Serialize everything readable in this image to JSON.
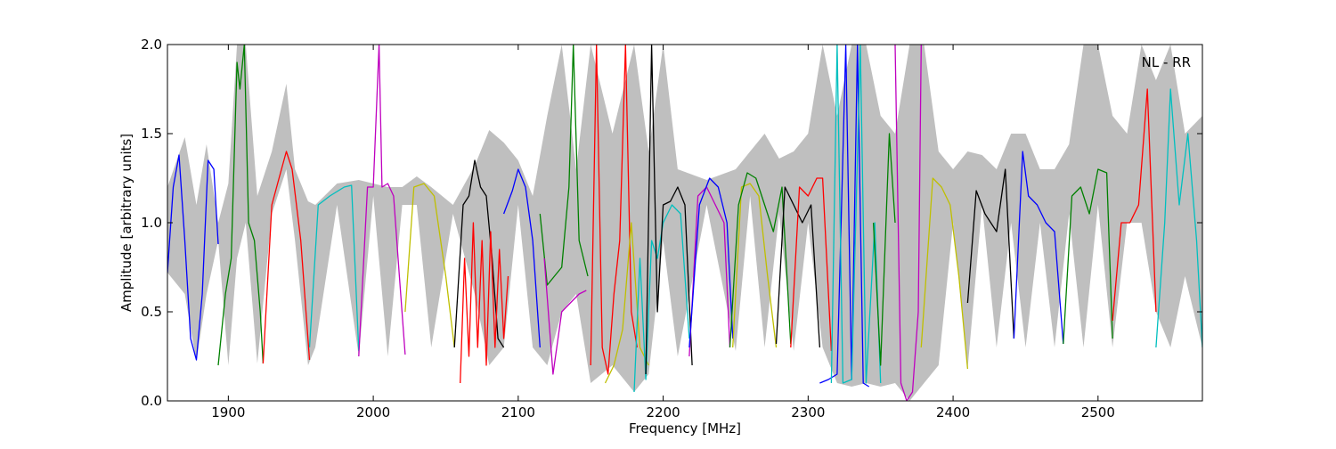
{
  "chart_data": {
    "type": "line",
    "title": "",
    "annotation": "NL - RR",
    "xlabel": "Frequency [MHz]",
    "ylabel": "Amplitude [arbitrary units]",
    "xlim": [
      1858,
      2572
    ],
    "ylim": [
      0,
      2.0
    ],
    "xticks": [
      1900,
      2000,
      2100,
      2200,
      2300,
      2400,
      2500
    ],
    "xtick_labels": [
      "1900",
      "2000",
      "2100",
      "2200",
      "2300",
      "2400",
      "2500"
    ],
    "yticks": [
      0.0,
      0.5,
      1.0,
      1.5,
      2.0
    ],
    "ytick_labels": [
      "0.0",
      "0.5",
      "1.0",
      "1.5",
      "2.0"
    ],
    "grid": false,
    "colors": {
      "envelope": "#bfbfbf",
      "blue": "#0000ff",
      "green": "#008000",
      "red": "#ff0000",
      "cyan": "#00bfbf",
      "magenta": "#bf00bf",
      "yellow": "#bfbf00",
      "black": "#000000"
    },
    "envelope": {
      "x": [
        1858,
        1870,
        1878,
        1885,
        1893,
        1900,
        1906,
        1912,
        1920,
        1930,
        1940,
        1946,
        1955,
        1960,
        1975,
        1990,
        2000,
        2010,
        2020,
        2030,
        2040,
        2055,
        2070,
        2080,
        2090,
        2100,
        2110,
        2120,
        2130,
        2140,
        2150,
        2165,
        2180,
        2190,
        2200,
        2210,
        2230,
        2250,
        2260,
        2270,
        2280,
        2290,
        2300,
        2310,
        2320,
        2330,
        2340,
        2350,
        2360,
        2370,
        2380,
        2390,
        2400,
        2410,
        2420,
        2430,
        2440,
        2450,
        2460,
        2470,
        2480,
        2490,
        2500,
        2510,
        2520,
        2530,
        2540,
        2550,
        2560,
        2572
      ],
      "upper": [
        1.2,
        1.48,
        1.1,
        1.44,
        1.0,
        1.22,
        2.0,
        2.0,
        1.15,
        1.4,
        1.78,
        1.3,
        1.12,
        1.1,
        1.22,
        1.24,
        1.22,
        1.2,
        1.2,
        1.26,
        1.2,
        1.1,
        1.32,
        1.52,
        1.45,
        1.35,
        1.15,
        1.6,
        2.0,
        1.3,
        2.0,
        1.5,
        2.0,
        1.4,
        2.0,
        1.3,
        1.24,
        1.3,
        1.4,
        1.5,
        1.36,
        1.4,
        1.5,
        2.0,
        1.6,
        2.0,
        2.0,
        1.6,
        1.5,
        2.0,
        2.0,
        1.4,
        1.3,
        1.4,
        1.38,
        1.3,
        1.5,
        1.5,
        1.3,
        1.3,
        1.44,
        2.0,
        2.0,
        1.6,
        1.5,
        2.0,
        1.8,
        2.0,
        1.5,
        1.6
      ],
      "lower": [
        0.72,
        0.6,
        0.22,
        0.6,
        0.9,
        0.2,
        0.8,
        1.0,
        0.21,
        1.05,
        1.3,
        0.9,
        0.2,
        0.3,
        1.1,
        0.25,
        1.15,
        0.25,
        1.1,
        1.1,
        0.3,
        1.05,
        0.6,
        0.2,
        0.3,
        1.1,
        0.3,
        0.2,
        0.5,
        0.6,
        0.1,
        0.2,
        0.05,
        0.15,
        0.9,
        0.25,
        1.1,
        0.28,
        1.15,
        0.3,
        1.05,
        0.28,
        1.0,
        0.3,
        0.1,
        0.08,
        0.1,
        0.08,
        0.1,
        0.0,
        0.1,
        0.2,
        1.0,
        0.18,
        1.1,
        0.3,
        1.0,
        0.3,
        1.0,
        0.3,
        1.05,
        0.3,
        1.1,
        0.3,
        1.0,
        1.0,
        0.5,
        0.3,
        0.7,
        0.3
      ]
    },
    "series": [
      {
        "color": "blue",
        "x": [
          1858,
          1862,
          1866,
          1870,
          1874,
          1878,
          1882,
          1886,
          1890,
          1893
        ],
        "y": [
          0.72,
          1.2,
          1.38,
          0.9,
          0.35,
          0.23,
          0.6,
          1.35,
          1.3,
          0.88
        ]
      },
      {
        "color": "green",
        "x": [
          1893,
          1898,
          1902,
          1906,
          1908,
          1911,
          1914,
          1918,
          1922,
          1924
        ],
        "y": [
          0.2,
          0.6,
          0.8,
          1.9,
          1.75,
          2.0,
          1.0,
          0.9,
          0.5,
          0.21
        ]
      },
      {
        "color": "red",
        "x": [
          1924,
          1930,
          1935,
          1940,
          1944,
          1950,
          1956
        ],
        "y": [
          0.21,
          1.1,
          1.25,
          1.4,
          1.3,
          0.9,
          0.23
        ]
      },
      {
        "color": "cyan",
        "x": [
          1956,
          1962,
          1970,
          1980,
          1985,
          1990
        ],
        "y": [
          0.3,
          1.1,
          1.15,
          1.2,
          1.21,
          0.28
        ]
      },
      {
        "color": "magenta",
        "x": [
          1990,
          1996,
          2000,
          2004,
          2006,
          2010,
          2014,
          2018,
          2022
        ],
        "y": [
          0.25,
          1.2,
          1.2,
          2.0,
          1.2,
          1.22,
          1.15,
          0.7,
          0.26
        ]
      },
      {
        "color": "yellow",
        "x": [
          2022,
          2028,
          2035,
          2042,
          2050,
          2056
        ],
        "y": [
          0.5,
          1.2,
          1.22,
          1.15,
          0.7,
          0.3
        ]
      },
      {
        "color": "black",
        "x": [
          2056,
          2062,
          2066,
          2070,
          2074,
          2078,
          2082,
          2086,
          2090
        ],
        "y": [
          0.3,
          1.1,
          1.15,
          1.35,
          1.2,
          1.15,
          0.8,
          0.35,
          0.3
        ]
      },
      {
        "color": "red",
        "x": [
          2060,
          2063,
          2066,
          2069,
          2072,
          2075,
          2078,
          2081,
          2084,
          2087,
          2090,
          2093
        ],
        "y": [
          0.1,
          0.8,
          0.25,
          1.0,
          0.3,
          0.9,
          0.2,
          0.95,
          0.3,
          0.85,
          0.35,
          0.7
        ]
      },
      {
        "color": "blue",
        "x": [
          2090,
          2096,
          2100,
          2105,
          2110,
          2115
        ],
        "y": [
          1.05,
          1.18,
          1.3,
          1.2,
          0.9,
          0.3
        ]
      },
      {
        "color": "green",
        "x": [
          2115,
          2120,
          2125,
          2130,
          2135,
          2138,
          2142,
          2148
        ],
        "y": [
          1.05,
          0.65,
          0.7,
          0.75,
          1.2,
          2.0,
          0.9,
          0.7
        ]
      },
      {
        "color": "magenta",
        "x": [
          2118,
          2124,
          2130,
          2136,
          2142,
          2147
        ],
        "y": [
          0.8,
          0.15,
          0.5,
          0.55,
          0.6,
          0.62
        ]
      },
      {
        "color": "red",
        "x": [
          2150,
          2154,
          2158,
          2162,
          2166,
          2170,
          2174,
          2178,
          2182
        ],
        "y": [
          0.2,
          2.0,
          0.3,
          0.15,
          0.6,
          0.9,
          2.0,
          0.5,
          0.3
        ]
      },
      {
        "color": "yellow",
        "x": [
          2160,
          2166,
          2172,
          2178,
          2184,
          2190
        ],
        "y": [
          0.1,
          0.2,
          0.4,
          1.0,
          0.3,
          0.2
        ]
      },
      {
        "color": "cyan",
        "x": [
          2180,
          2184,
          2188,
          2192,
          2196,
          2200,
          2206,
          2212,
          2218
        ],
        "y": [
          0.05,
          0.8,
          0.12,
          0.9,
          0.8,
          1.0,
          1.1,
          1.05,
          0.35
        ]
      },
      {
        "color": "black",
        "x": [
          2188,
          2192,
          2196,
          2200,
          2205,
          2210,
          2215,
          2220
        ],
        "y": [
          0.15,
          2.0,
          0.5,
          1.1,
          1.12,
          1.2,
          1.1,
          0.2
        ]
      },
      {
        "color": "magenta",
        "x": [
          2218,
          2224,
          2230,
          2236,
          2242,
          2246
        ],
        "y": [
          0.25,
          1.15,
          1.2,
          1.1,
          1.0,
          0.3
        ]
      },
      {
        "color": "blue",
        "x": [
          2218,
          2225,
          2232,
          2238,
          2244,
          2248
        ],
        "y": [
          0.3,
          1.1,
          1.25,
          1.2,
          1.0,
          0.35
        ]
      },
      {
        "color": "yellow",
        "x": [
          2248,
          2254,
          2260,
          2266,
          2272,
          2278
        ],
        "y": [
          0.3,
          1.2,
          1.22,
          1.15,
          0.7,
          0.3
        ]
      },
      {
        "color": "green",
        "x": [
          2246,
          2252,
          2258,
          2264,
          2270,
          2276,
          2282,
          2288
        ],
        "y": [
          0.3,
          1.1,
          1.28,
          1.25,
          1.1,
          0.95,
          1.2,
          0.32
        ]
      },
      {
        "color": "black",
        "x": [
          2278,
          2284,
          2290,
          2296,
          2302,
          2308
        ],
        "y": [
          0.32,
          1.2,
          1.1,
          1.0,
          1.1,
          0.3
        ]
      },
      {
        "color": "red",
        "x": [
          2288,
          2294,
          2300,
          2306,
          2310,
          2316
        ],
        "y": [
          0.3,
          1.2,
          1.15,
          1.25,
          1.25,
          0.28
        ]
      },
      {
        "color": "blue",
        "x": [
          2308,
          2314,
          2320,
          2326,
          2330,
          2334,
          2338,
          2342
        ],
        "y": [
          0.1,
          0.12,
          0.15,
          2.0,
          0.12,
          2.0,
          0.1,
          0.08
        ]
      },
      {
        "color": "cyan",
        "x": [
          2316,
          2320,
          2324,
          2330,
          2336,
          2340,
          2346,
          2350
        ],
        "y": [
          0.1,
          2.0,
          0.1,
          0.12,
          2.0,
          0.1,
          1.0,
          0.1
        ]
      },
      {
        "color": "green",
        "x": [
          2345,
          2350,
          2356,
          2360
        ],
        "y": [
          1.0,
          0.2,
          1.5,
          1.0
        ]
      },
      {
        "color": "magenta",
        "x": [
          2360,
          2364,
          2368,
          2372,
          2376,
          2378
        ],
        "y": [
          2.0,
          0.1,
          0.0,
          0.05,
          0.5,
          2.0
        ]
      },
      {
        "color": "yellow",
        "x": [
          2378,
          2386,
          2392,
          2398,
          2404,
          2410
        ],
        "y": [
          0.3,
          1.25,
          1.2,
          1.1,
          0.7,
          0.18
        ]
      },
      {
        "color": "black",
        "x": [
          2410,
          2416,
          2422,
          2430,
          2436,
          2442
        ],
        "y": [
          0.55,
          1.18,
          1.05,
          0.95,
          1.3,
          0.35
        ]
      },
      {
        "color": "blue",
        "x": [
          2442,
          2448,
          2452,
          2458,
          2464,
          2470,
          2476
        ],
        "y": [
          0.35,
          1.4,
          1.15,
          1.1,
          1.0,
          0.95,
          0.32
        ]
      },
      {
        "color": "green",
        "x": [
          2476,
          2482,
          2488,
          2494,
          2500,
          2506,
          2510
        ],
        "y": [
          0.32,
          1.15,
          1.2,
          1.05,
          1.3,
          1.28,
          0.35
        ]
      },
      {
        "color": "red",
        "x": [
          2510,
          2516,
          2522,
          2528,
          2534,
          2540
        ],
        "y": [
          0.45,
          1.0,
          1.0,
          1.1,
          1.75,
          0.5
        ]
      },
      {
        "color": "cyan",
        "x": [
          2540,
          2546,
          2550,
          2556,
          2562,
          2568,
          2572
        ],
        "y": [
          0.3,
          1.0,
          1.75,
          1.1,
          1.5,
          0.9,
          0.3
        ]
      }
    ]
  }
}
